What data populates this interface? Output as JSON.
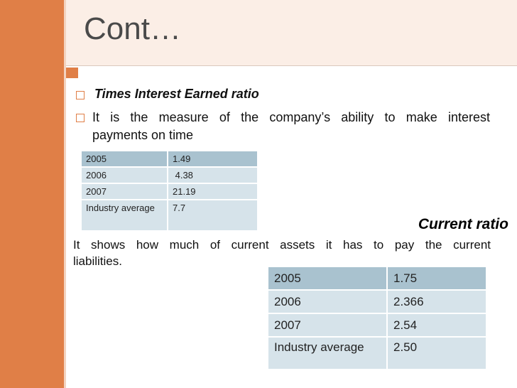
{
  "slide": {
    "title": "Cont…",
    "bullets": [
      "Times Interest Earned ratio",
      "It is the measure of the company’s ability to make interest payments on time"
    ],
    "bullet_para_line1": "It is the measure of the company’s ability to make interest",
    "bullet_para_line2": "payments on time"
  },
  "times_interest_table": {
    "rows": [
      {
        "year": "2005",
        "value": "1.49"
      },
      {
        "year": "2006",
        "value": " 4.38"
      },
      {
        "year": "2007",
        "value": "21.19"
      },
      {
        "year": "Industry average",
        "value": "7.7"
      }
    ]
  },
  "current_ratio": {
    "heading": "Current ratio",
    "desc_line1": "It shows how much of current assets it has to pay the current",
    "desc_line2": "liabilities.",
    "rows": [
      {
        "year": "2005",
        "value": "1.75"
      },
      {
        "year": "2006",
        "value": "2.366"
      },
      {
        "year": "2007",
        "value": "2.54"
      },
      {
        "year": "Industry average",
        "value": "2.50"
      }
    ]
  },
  "colors": {
    "accent": "#e07f47",
    "table_header": "#a9c2cf",
    "table_cell": "#d6e3ea"
  }
}
